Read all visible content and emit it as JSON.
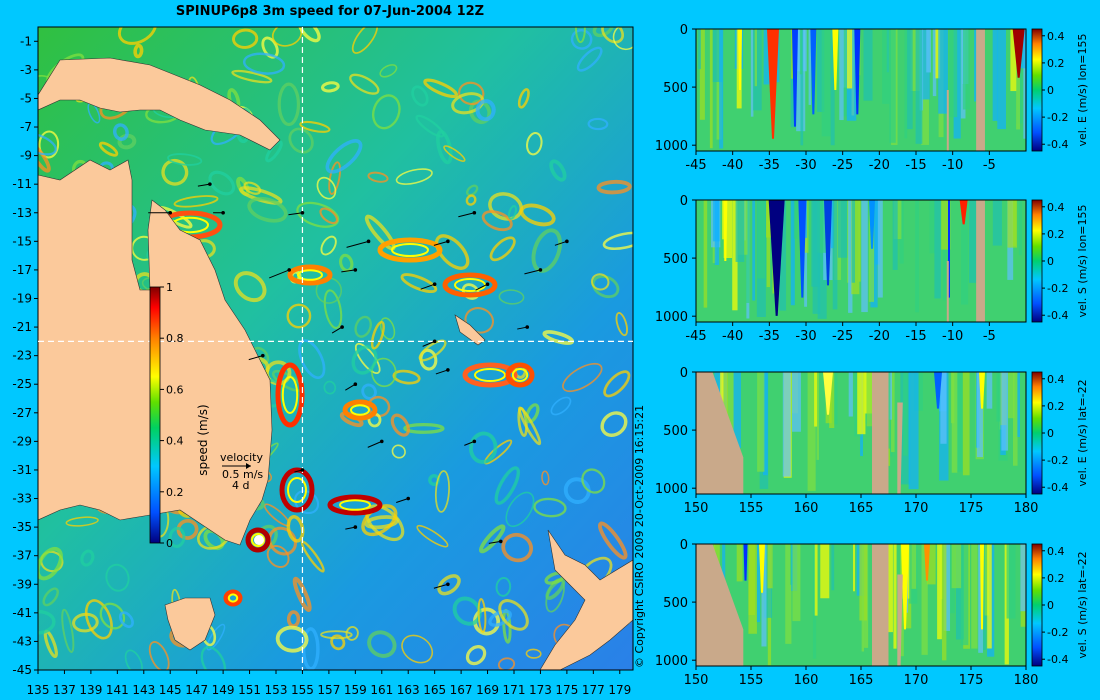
{
  "title": "SPINUP6p8 3m speed for 07-Jun-2004 12Z",
  "copyright": "© Copyright CSIRO 2009   20-Oct-2009 16:15:21",
  "colors": {
    "background": "#00c8ff",
    "land": "#fbc99b",
    "panel_land": "#c9a98a",
    "crosshair": "#ffffff"
  },
  "main_map": {
    "type": "heatmap",
    "lon_range": [
      135,
      180
    ],
    "lat_range": [
      -45,
      0
    ],
    "x_ticks": [
      "135",
      "137",
      "139",
      "141",
      "143",
      "145",
      "147",
      "149",
      "151",
      "153",
      "155",
      "157",
      "159",
      "161",
      "163",
      "165",
      "167",
      "169",
      "171",
      "173",
      "175",
      "177",
      "179"
    ],
    "y_ticks": [
      "-1",
      "-3",
      "-5",
      "-7",
      "-9",
      "-11",
      "-13",
      "-15",
      "-17",
      "-19",
      "-21",
      "-23",
      "-25",
      "-27",
      "-29",
      "-31",
      "-33",
      "-35",
      "-37",
      "-39",
      "-41",
      "-43",
      "-45"
    ],
    "crosshair": {
      "lon": 155,
      "lat": -22
    },
    "colorbar": {
      "label": "speed (m/s)",
      "ticks": [
        "0",
        "0.2",
        "0.4",
        "0.6",
        "0.8",
        "1"
      ],
      "range": [
        0,
        1
      ]
    },
    "velocity_key": {
      "label": "velocity",
      "scale": "0.5 m/s",
      "duration": "4 d"
    }
  },
  "chart_data": [
    {
      "type": "heatmap",
      "name": "section lon=155 east velocity",
      "x": "latitude",
      "xlim": [
        -45,
        0
      ],
      "x_ticks": [
        "-45",
        "-40",
        "-35",
        "-30",
        "-25",
        "-20",
        "-15",
        "-10",
        "-5"
      ],
      "y_ticks": [
        "0",
        "500",
        "1000"
      ],
      "ylim": [
        1050,
        0
      ],
      "colorbar": {
        "label": "vel. E (m/s) lon=155",
        "ticks": [
          "0.4",
          "0.2",
          "0",
          "-0.2",
          "-0.4"
        ],
        "range": [
          -0.45,
          0.45
        ]
      }
    },
    {
      "type": "heatmap",
      "name": "section lon=155 south velocity",
      "x": "latitude",
      "xlim": [
        -45,
        0
      ],
      "x_ticks": [
        "-45",
        "-40",
        "-35",
        "-30",
        "-25",
        "-20",
        "-15",
        "-10",
        "-5"
      ],
      "y_ticks": [
        "0",
        "500",
        "1000"
      ],
      "ylim": [
        1050,
        0
      ],
      "colorbar": {
        "label": "vel. S (m/s) lon=155",
        "ticks": [
          "0.4",
          "0.2",
          "0",
          "-0.2",
          "-0.4"
        ],
        "range": [
          -0.45,
          0.45
        ]
      }
    },
    {
      "type": "heatmap",
      "name": "section lat=-22 east velocity",
      "x": "longitude",
      "xlim": [
        150,
        180
      ],
      "x_ticks": [
        "150",
        "155",
        "160",
        "165",
        "170",
        "175",
        "180"
      ],
      "y_ticks": [
        "0",
        "500",
        "1000"
      ],
      "ylim": [
        1050,
        0
      ],
      "colorbar": {
        "label": "vel. E (m/s) lat=-22",
        "ticks": [
          "0.4",
          "0.2",
          "0",
          "-0.2",
          "-0.4"
        ],
        "range": [
          -0.45,
          0.45
        ]
      }
    },
    {
      "type": "heatmap",
      "name": "section lat=-22 south velocity",
      "x": "longitude",
      "xlim": [
        150,
        180
      ],
      "x_ticks": [
        "150",
        "155",
        "160",
        "165",
        "170",
        "175",
        "180"
      ],
      "y_ticks": [
        "0",
        "500",
        "1000"
      ],
      "ylim": [
        1050,
        0
      ],
      "colorbar": {
        "label": "vel. S (m/s) lat=-22",
        "ticks": [
          "0.4",
          "0.2",
          "0",
          "-0.2",
          "-0.4"
        ],
        "range": [
          -0.45,
          0.45
        ]
      }
    }
  ]
}
